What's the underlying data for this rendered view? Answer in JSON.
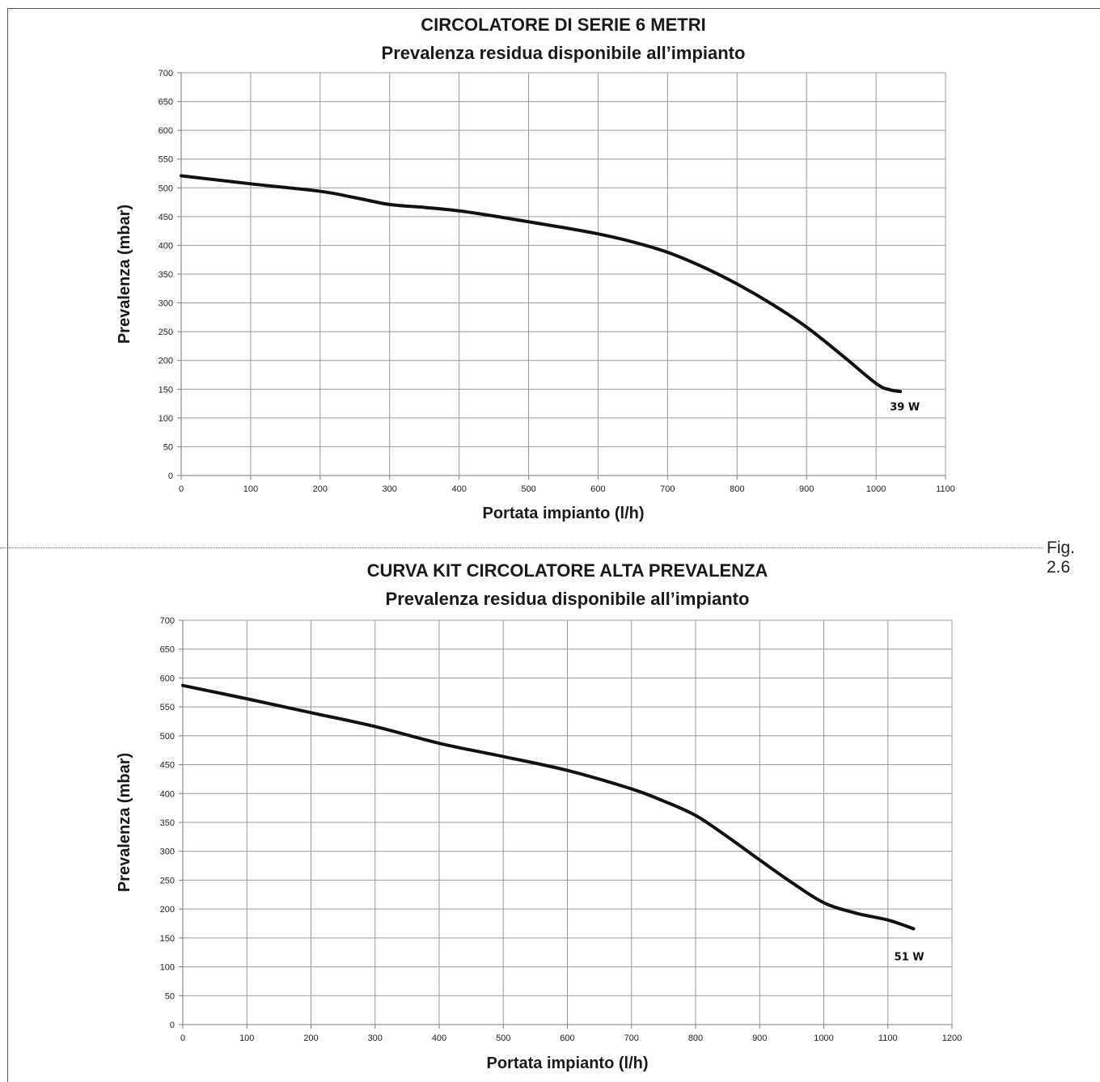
{
  "figure_label": "Fig. 2.6",
  "chart_data": [
    {
      "type": "line",
      "title": "CIRCOLATORE DI SERIE 6 METRI",
      "subtitle": "Prevalenza residua disponibile all’impianto",
      "xlabel": "Portata impianto (l/h)",
      "ylabel": "Prevalenza (mbar)",
      "xlim": [
        0,
        1100
      ],
      "ylim": [
        0,
        700
      ],
      "xticks": [
        0,
        100,
        200,
        300,
        400,
        500,
        600,
        700,
        800,
        900,
        1000,
        1100
      ],
      "yticks": [
        0,
        50,
        100,
        150,
        200,
        250,
        300,
        350,
        400,
        450,
        500,
        550,
        600,
        650,
        700
      ],
      "grid": true,
      "series": [
        {
          "x": [
            0,
            100,
            200,
            250,
            300,
            350,
            400,
            450,
            500,
            550,
            600,
            650,
            700,
            750,
            800,
            850,
            900,
            950,
            1000,
            1020,
            1035
          ],
          "y": [
            521,
            507,
            494,
            483,
            471,
            466,
            460,
            451,
            441,
            431,
            420,
            406,
            388,
            363,
            333,
            298,
            258,
            210,
            160,
            149,
            146
          ]
        }
      ],
      "annotations": [
        {
          "text": "39 W",
          "x": 1020,
          "y": 113
        }
      ]
    },
    {
      "type": "line",
      "title": "CURVA KIT CIRCOLATORE ALTA PREVALENZA",
      "subtitle": "Prevalenza residua disponibile all’impianto",
      "xlabel": "Portata impianto (l/h)",
      "ylabel": "Prevalenza (mbar)",
      "xlim": [
        0,
        1200
      ],
      "ylim": [
        0,
        700
      ],
      "xticks": [
        0,
        100,
        200,
        300,
        400,
        500,
        600,
        700,
        800,
        900,
        1000,
        1100,
        1200
      ],
      "yticks": [
        0,
        50,
        100,
        150,
        200,
        250,
        300,
        350,
        400,
        450,
        500,
        550,
        600,
        650,
        700
      ],
      "grid": true,
      "series": [
        {
          "x": [
            0,
            100,
            200,
            300,
            400,
            500,
            600,
            700,
            750,
            800,
            850,
            900,
            950,
            1000,
            1050,
            1100,
            1140
          ],
          "y": [
            587,
            564,
            540,
            516,
            487,
            464,
            440,
            408,
            387,
            362,
            325,
            285,
            246,
            211,
            193,
            181,
            166
          ]
        }
      ],
      "annotations": [
        {
          "text": "51 W",
          "x": 1110,
          "y": 111
        }
      ]
    }
  ]
}
